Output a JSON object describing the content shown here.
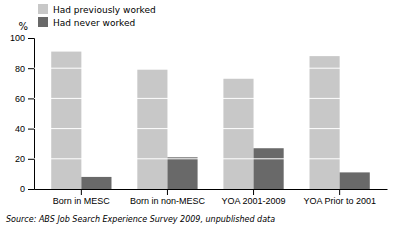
{
  "chart_data": {
    "type": "bar",
    "ylabel": "%",
    "source": "Source: ABS Job Search Experience Survey 2009, unpublished data",
    "categories": [
      "Born in MESC",
      "Born in non-MESC",
      "YOA 2001-2009",
      "YOA Prior to 2001"
    ],
    "series": [
      {
        "name": "Had previously worked",
        "color": "#c8c8c8",
        "values": [
          91,
          79,
          73,
          88
        ]
      },
      {
        "name": "Had never worked",
        "color": "#696969",
        "values": [
          8,
          21,
          27,
          11
        ]
      }
    ],
    "ylim": [
      0,
      100
    ],
    "yticks": [
      0,
      20,
      40,
      60,
      80,
      100
    ],
    "grid": true,
    "legend": "top-left"
  }
}
